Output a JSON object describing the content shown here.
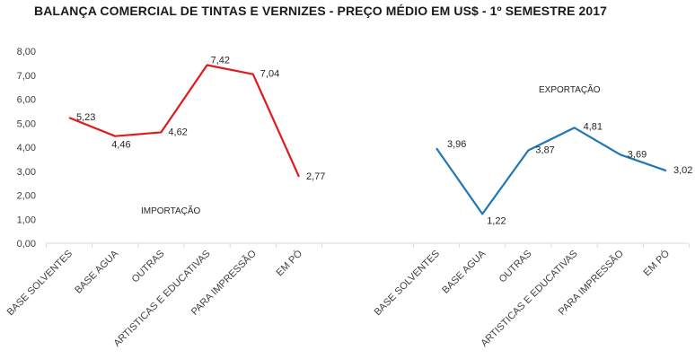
{
  "chart_data": {
    "type": "line",
    "title": "BALANÇA COMERCIAL DE TINTAS E VERNIZES - PREÇO MÉDIO EM US$ -  1º SEMESTRE 2017",
    "ylim": [
      0,
      8
    ],
    "yticks": [
      "0,00",
      "1,00",
      "2,00",
      "3,00",
      "4,00",
      "5,00",
      "6,00",
      "7,00",
      "8,00"
    ],
    "grid": false,
    "categories": [
      "BASE SOLVENTES",
      "BASE AGUA",
      "OUTRAS",
      "ARTISTICAS E EDUCATIVAS",
      "PARA IMPRESSÃO",
      "EM PÓ"
    ],
    "series": [
      {
        "name": "IMPORTAÇÃO",
        "color": "#e31a1c",
        "values": [
          5.23,
          4.46,
          4.62,
          7.42,
          7.04,
          2.77
        ],
        "labels": [
          "5,23",
          "4,46",
          "4,62",
          "7,42",
          "7,04",
          "2,77"
        ]
      },
      {
        "name": "EXPORTAÇÃO",
        "color": "#1f78b4",
        "values": [
          3.96,
          1.22,
          3.87,
          4.81,
          3.69,
          3.02
        ],
        "labels": [
          "3,96",
          "1,22",
          "3,87",
          "4,81",
          "3,69",
          "3,02"
        ]
      }
    ]
  }
}
